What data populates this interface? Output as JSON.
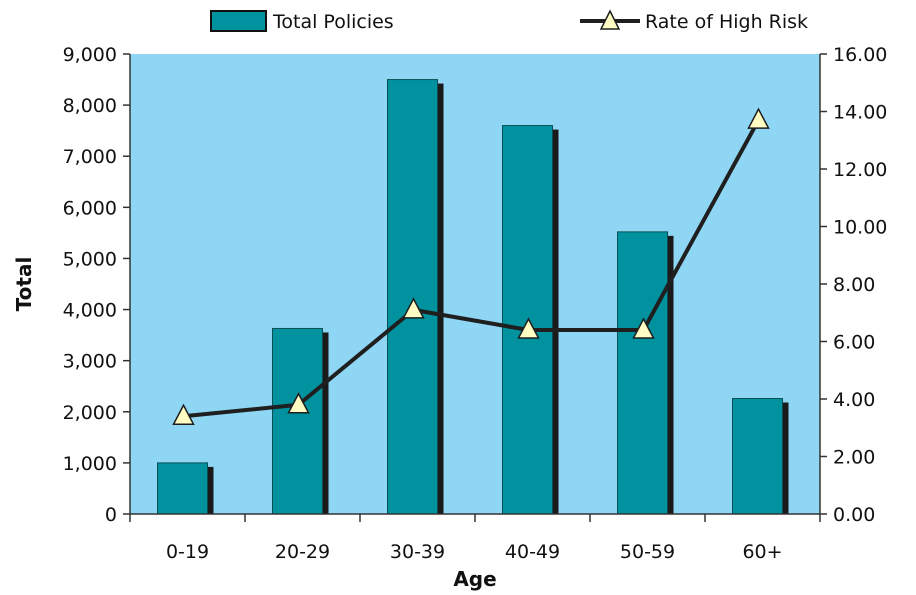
{
  "chart_data": {
    "type": "bar",
    "categories": [
      "0-19",
      "20-29",
      "30-39",
      "40-49",
      "50-59",
      "60+"
    ],
    "series": [
      {
        "name": "Total Policies",
        "type": "bar",
        "axis": "left",
        "values": [
          1000,
          3630,
          8500,
          7600,
          5520,
          2260
        ]
      },
      {
        "name": "Rate of High Risk",
        "type": "line",
        "axis": "right",
        "values": [
          3.4,
          3.8,
          7.1,
          6.4,
          6.4,
          13.7
        ]
      }
    ],
    "xlabel": "Age",
    "ylabel": "Total",
    "ylim": [
      0,
      9000
    ],
    "y_ticks": [
      "0",
      "1,000",
      "2,000",
      "3,000",
      "4,000",
      "5,000",
      "6,000",
      "7,000",
      "8,000",
      "9,000"
    ],
    "y2lim": [
      0,
      16
    ],
    "y2_ticks": [
      "0.00",
      "2.00",
      "4.00",
      "6.00",
      "8.00",
      "10.00",
      "12.00",
      "14.00",
      "16.00"
    ],
    "grid": false,
    "legend_position": "top",
    "colors": {
      "plot_background": "#8fd6f5",
      "bar": "#00939f",
      "bar_shadow": "#1a1a1a",
      "line": "#1f1f1f",
      "marker_fill": "#fffcc4"
    }
  }
}
